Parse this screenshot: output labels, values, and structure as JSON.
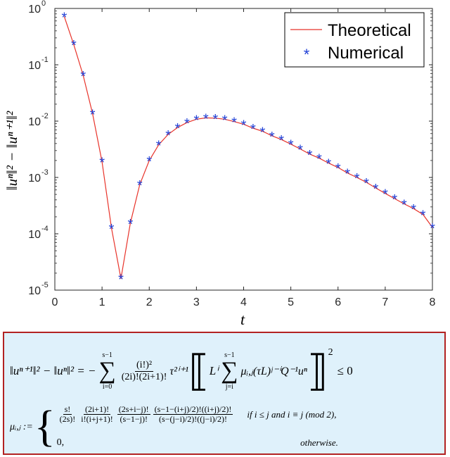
{
  "chart_data": {
    "type": "line",
    "x_ticks": [
      "0",
      "1",
      "2",
      "3",
      "4",
      "5",
      "6",
      "7",
      "8"
    ],
    "y_ticks": [
      {
        "base": "10",
        "exp": "0"
      },
      {
        "base": "10",
        "exp": "-1"
      },
      {
        "base": "10",
        "exp": "-2"
      },
      {
        "base": "10",
        "exp": "-3"
      },
      {
        "base": "10",
        "exp": "-4"
      },
      {
        "base": "10",
        "exp": "-5"
      }
    ],
    "xlim": [
      0,
      8
    ],
    "ylim": [
      1e-05,
      1
    ],
    "yscale": "log",
    "xlabel": "t",
    "ylabel": "‖uⁿ‖² − ‖uⁿ⁺¹‖²",
    "legend_position": "top-right",
    "series": [
      {
        "name": "Theoretical",
        "style": "line",
        "color": "#e8332a",
        "x": [
          0.2,
          0.4,
          0.6,
          0.8,
          1.0,
          1.2,
          1.4,
          1.6,
          1.8,
          2.0,
          2.2,
          2.4,
          2.6,
          2.8,
          3.0,
          3.2,
          3.4,
          3.6,
          3.8,
          4.0,
          4.2,
          4.4,
          4.6,
          4.8,
          5.0,
          5.2,
          5.4,
          5.6,
          5.8,
          6.0,
          6.2,
          6.4,
          6.6,
          6.8,
          7.0,
          7.2,
          7.4,
          7.6,
          7.8,
          8.0
        ],
        "y": [
          0.72,
          0.23,
          0.065,
          0.0135,
          0.0019,
          0.000125,
          1.6e-05,
          0.000155,
          0.00075,
          0.002,
          0.0038,
          0.0058,
          0.0077,
          0.0094,
          0.0108,
          0.0114,
          0.0113,
          0.0108,
          0.0098,
          0.0088,
          0.0075,
          0.0066,
          0.0055,
          0.0047,
          0.0039,
          0.0032,
          0.0026,
          0.0022,
          0.0018,
          0.0015,
          0.0012,
          0.001,
          0.00082,
          0.00065,
          0.00052,
          0.00042,
          0.00034,
          0.00028,
          0.00022,
          0.00013
        ]
      },
      {
        "name": "Numerical",
        "style": "marker",
        "marker": "*",
        "color": "#1f3fd6",
        "x": [
          0.2,
          0.4,
          0.6,
          0.8,
          1.0,
          1.2,
          1.4,
          1.6,
          1.8,
          2.0,
          2.2,
          2.4,
          2.6,
          2.8,
          3.0,
          3.2,
          3.4,
          3.6,
          3.8,
          4.0,
          4.2,
          4.4,
          4.6,
          4.8,
          5.0,
          5.2,
          5.4,
          5.6,
          5.8,
          6.0,
          6.2,
          6.4,
          6.6,
          6.8,
          7.0,
          7.2,
          7.4,
          7.6,
          7.8,
          8.0
        ],
        "y": [
          0.72,
          0.23,
          0.065,
          0.0135,
          0.0019,
          0.000125,
          1.6e-05,
          0.000155,
          0.00075,
          0.002,
          0.0038,
          0.0058,
          0.0077,
          0.0094,
          0.0108,
          0.0114,
          0.0113,
          0.0108,
          0.0098,
          0.0088,
          0.0075,
          0.0066,
          0.0055,
          0.0047,
          0.0039,
          0.0032,
          0.0026,
          0.0022,
          0.0018,
          0.0015,
          0.0012,
          0.001,
          0.00082,
          0.00065,
          0.00052,
          0.00042,
          0.00034,
          0.00028,
          0.00022,
          0.00013
        ]
      }
    ]
  },
  "formula": {
    "box_border_color": "#b22222",
    "box_background": "#dff1fb",
    "eq1_lhs": "‖uⁿ⁺¹‖² − ‖uⁿ‖² = −",
    "sum1_top": "s−1",
    "sum1_bottom": "i=0",
    "frac1_num": "(i!)²",
    "frac1_den": "(2i)!(2i+1)!",
    "tau_term": "τ²ⁱ⁺¹",
    "inner_L": "Lⁱ",
    "sum2_top": "s−1",
    "sum2_bottom": "j=i",
    "inner_body": "μᵢ,ⱼ(τL)ʲ⁻ⁱQ⁻¹uⁿ",
    "power": "2",
    "rhs": "≤ 0",
    "mu_lhs": "μᵢ,ⱼ :=",
    "c1_f1_num": "s!",
    "c1_f1_den": "(2s)!",
    "c1_f2_num": "(2i+1)!",
    "c1_f2_den": "i!(i+j+1)!",
    "c1_f3_num": "(2s+i−j)!",
    "c1_f3_den": "(s−1−j)!",
    "c1_f4_num": "(s−1−(i+j)/2)!((i+j)/2)!",
    "c1_f4_den": "(s−(j−i)/2)!((j−i)/2)!",
    "case1_cond": "if i ≤ j and i ≡ j (mod 2),",
    "case2_value": "0,",
    "case2_cond": "otherwise."
  }
}
